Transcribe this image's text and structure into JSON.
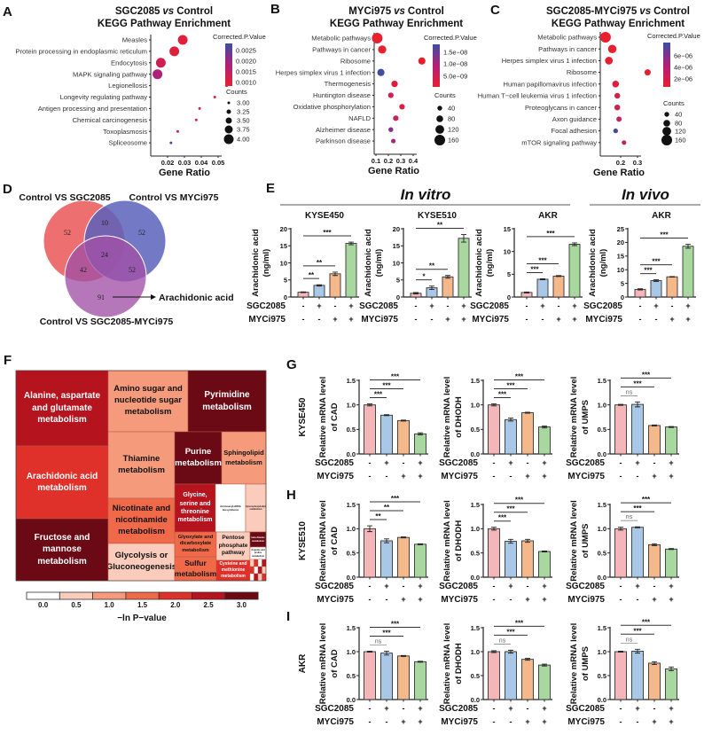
{
  "panel_letters": {
    "A": "A",
    "B": "B",
    "C": "C",
    "D": "D",
    "E": "E",
    "F": "F",
    "G": "G",
    "H": "H",
    "I": "I"
  },
  "colors": {
    "p_low": "#e8202e",
    "p_mid": "#b0207a",
    "p_high": "#3b4ea0",
    "ctrl": "#f4b6b8",
    "sgc": "#a9c8e8",
    "myc": "#f5b88a",
    "combo": "#a8d8a0"
  },
  "chart_data": [
    {
      "id": "A",
      "type": "scatter",
      "title_a": "SGC2085",
      "title_vs": "vs",
      "title_b": "Control",
      "title2": "KEGG Pathway Enrichment",
      "xlabel": "Gene Ratio",
      "xticks": [
        "0.02",
        "0.03",
        "0.04",
        "0.05"
      ],
      "categories": [
        "Measles",
        "Protein processing in endoplasmic reticulum",
        "Endocytosis",
        "MAPK signaling pathway",
        "Legionellosis",
        "Longevity regulating pathway",
        "Antigen processing and presentation",
        "Chemical carcinogenesis",
        "Toxoplasmosis",
        "Spliceosome"
      ],
      "gene_ratio": [
        0.029,
        0.024,
        0.016,
        0.014,
        0.055,
        0.048,
        0.039,
        0.037,
        0.026,
        0.022
      ],
      "counts": [
        4,
        4,
        4,
        4,
        3,
        3,
        3,
        3,
        3,
        3
      ],
      "p_value": [
        0.00095,
        0.001,
        0.0013,
        0.0018,
        0.001,
        0.001,
        0.0011,
        0.0011,
        0.0015,
        0.0027
      ],
      "color_range": [
        0.0008,
        0.0028
      ],
      "color_legend": {
        "title": "Corrected.P.Value",
        "ticks": [
          "0.0025",
          "0.0020",
          "0.0015",
          "0.0010"
        ]
      },
      "size_legend": {
        "title": "Counts",
        "ticks": [
          "3.00",
          "3.25",
          "3.50",
          "3.75",
          "4.00"
        ],
        "values": [
          3,
          3.25,
          3.5,
          3.75,
          4
        ]
      }
    },
    {
      "id": "B",
      "type": "scatter",
      "title_a": "MYCi975",
      "title_vs": "vs",
      "title_b": "Control",
      "title2": "KEGG Pathway Enrichment",
      "xlabel": "Gene Ratio",
      "xticks": [
        "0.1",
        "0.2",
        "0.3",
        "0.4"
      ],
      "categories": [
        "Metabolic pathways",
        "Pathways in cancer",
        "Ribosome",
        "Herpes simplex virus 1 infection",
        "Thermogenesis",
        "Huntington disease",
        "Oxidative phosphorylation",
        "NAFLD",
        "Alzheimer disease",
        "Parkinson disease"
      ],
      "gene_ratio": [
        0.11,
        0.15,
        0.47,
        0.14,
        0.25,
        0.22,
        0.31,
        0.26,
        0.22,
        0.24
      ],
      "counts": [
        160,
        110,
        90,
        90,
        75,
        55,
        55,
        55,
        40,
        35
      ],
      "p_value": [
        1e-10,
        1e-10,
        1e-10,
        1.7e-08,
        2e-09,
        4e-09,
        3e-09,
        5e-09,
        1.2e-08,
        9e-09
      ],
      "color_range": [
        0,
        1.76e-08
      ],
      "color_legend": {
        "title": "Corrected.P.Value",
        "ticks": [
          "1.5e−08",
          "1.0e−08",
          "5.0e−09"
        ]
      },
      "size_legend": {
        "title": "Counts",
        "ticks": [
          "40",
          "80",
          "120",
          "160"
        ],
        "values": [
          40,
          80,
          120,
          160
        ]
      }
    },
    {
      "id": "C",
      "type": "scatter",
      "title_a": "SGC2085-MYCi975",
      "title_vs": "vs",
      "title_b": "Control",
      "title2": "KEGG Pathway Enrichment",
      "xlabel": "Gene Ratio",
      "xticks": [
        "0.2",
        "0.3"
      ],
      "categories": [
        "Metabolic pathways",
        "Pathways in cancer",
        "Herpes simplex virus 1 infection",
        "Ribosome",
        "Human papillomavirus infection",
        "Human T−cell leukemia virus 1 infection",
        "Proteoglycans in cancer",
        "Axon guidance",
        "Focal adhesion",
        "mTOR signaling pathway"
      ],
      "gene_ratio": [
        0.11,
        0.15,
        0.13,
        0.36,
        0.17,
        0.18,
        0.18,
        0.19,
        0.17,
        0.22
      ],
      "counts": [
        160,
        115,
        100,
        70,
        80,
        60,
        60,
        50,
        40,
        35
      ],
      "p_value": [
        1e-07,
        4e-07,
        5e-07,
        5e-07,
        1e-06,
        1.5e-06,
        2e-06,
        2.5e-06,
        7.5e-06,
        3e-06
      ],
      "color_range": [
        3e-07,
        8e-06
      ],
      "color_legend": {
        "title": "Corrected.P.Value",
        "ticks": [
          "6e−06",
          "4e−06",
          "2e−06"
        ]
      },
      "size_legend": {
        "title": "Counts",
        "ticks": [
          "40",
          "80",
          "120",
          "160"
        ],
        "values": [
          40,
          80,
          120,
          160
        ]
      }
    },
    {
      "id": "D",
      "type": "venn",
      "sets": [
        "Control VS SGC2085",
        "Control VS MYCi975",
        "Control VS SGC2085-MYCi975"
      ],
      "regions": {
        "only_1": "52",
        "only_2": "52",
        "only_3": "91",
        "1_2": "10",
        "1_3": "42",
        "2_3": "52",
        "1_2_3": "24"
      },
      "annotation": "Arachidonic acid"
    },
    {
      "id": "E",
      "type": "bar",
      "group_headers": {
        "in_vitro": "In vitro",
        "in_vivo": "In vivo"
      },
      "ylabel": [
        "Arachidonic acid",
        "(ng/ml)"
      ],
      "row_labels": [
        "SGC2085",
        "MYCi975"
      ],
      "conditions": {
        "SGC2085": [
          "-",
          "+",
          "-",
          "+"
        ],
        "MYCi975": [
          "-",
          "-",
          "+",
          "+"
        ]
      },
      "panels": [
        {
          "title": "KYSE450",
          "ymax": 20,
          "yticks": [
            "0",
            "5",
            "10",
            "15",
            "20"
          ],
          "values": [
            1.4,
            3.4,
            6.8,
            15.7
          ],
          "errors": [
            0.1,
            0.2,
            0.5,
            0.4
          ],
          "significance": [
            "**",
            "**",
            "***"
          ]
        },
        {
          "title": "KYSE510",
          "ymax": 20,
          "yticks": [
            "0",
            "5",
            "10",
            "15",
            "20"
          ],
          "values": [
            1.1,
            2.7,
            5.9,
            17.2
          ],
          "errors": [
            0.2,
            0.5,
            0.4,
            1.1
          ],
          "significance": [
            "*",
            "**",
            "**"
          ]
        },
        {
          "title": "AKR",
          "ymax": 15,
          "yticks": [
            "0",
            "5",
            "10",
            "15"
          ],
          "values": [
            1.0,
            3.9,
            4.6,
            11.6
          ],
          "errors": [
            0.1,
            0.1,
            0.1,
            0.3
          ],
          "significance": [
            "***",
            "***",
            "***"
          ]
        },
        {
          "title": "AKR",
          "ymax": 25,
          "yticks": [
            "0",
            "5",
            "10",
            "15",
            "20",
            "25"
          ],
          "values": [
            2.8,
            6.0,
            7.4,
            18.6
          ],
          "errors": [
            0.2,
            0.3,
            0.1,
            0.7
          ],
          "significance": [
            "***",
            "***",
            "***"
          ]
        }
      ]
    },
    {
      "id": "F",
      "type": "treemap",
      "legend_title": "−ln P−value",
      "legend_ticks": [
        "0.0",
        "0.5",
        "1.0",
        "1.5",
        "2.0",
        "2.5",
        "3.0"
      ],
      "legend_colors": [
        "#ffffff",
        "#fbcbbb",
        "#f59a7a",
        "#f06a4a",
        "#e0302a",
        "#b5141e",
        "#6b0a14"
      ],
      "items": [
        {
          "name": "Alanine, aspartate and glutamate metabolism",
          "value": 2.6
        },
        {
          "name": "Arachidonic acid metabolism",
          "value": 2.1
        },
        {
          "name": "Fructose and mannose metabolism",
          "value": 3.1
        },
        {
          "name": "Amino sugar and nucleotide sugar metabolism",
          "value": 1.2
        },
        {
          "name": "Pyrimidine metabolism",
          "value": 3.1
        },
        {
          "name": "Thiamine metabolism",
          "value": 0.8
        },
        {
          "name": "Nicotinate and nicotinamide metabolism",
          "value": 1.3
        },
        {
          "name": "Glycolysis or Gluconeogenesis",
          "value": 0.6
        },
        {
          "name": "Purine metabolism",
          "value": 3.1
        },
        {
          "name": "Sphingolipid metabolism",
          "value": 0.8
        },
        {
          "name": "Glycine, serine and threonine metabolism",
          "value": 2.6
        },
        {
          "name": "Aminoacyl-tRNA biosynthesis",
          "value": 0.1
        },
        {
          "name": "Glycerophospholipid metabolism",
          "value": 0.3
        },
        {
          "name": "Glyoxylate and dicarboxylate metabolism",
          "value": 1.3
        },
        {
          "name": "Sulfur metabolism",
          "value": 1.4
        },
        {
          "name": "Pentose phosphate pathway",
          "value": 0.4
        },
        {
          "name": "Cysteine and methionine metabolism",
          "value": 2.2
        },
        {
          "name": "beta-Alanine metabolism",
          "value": 3.0
        },
        {
          "name": "Arginine and proline metabolism",
          "value": 0.2
        }
      ]
    },
    {
      "id": "GHI",
      "type": "bar",
      "row_labels": [
        "SGC2085",
        "MYCi975"
      ],
      "conditions": {
        "SGC2085": [
          "-",
          "+",
          "-",
          "+"
        ],
        "MYCi975": [
          "-",
          "-",
          "+",
          "+"
        ]
      },
      "yticks": [
        "0.0",
        "0.5",
        "1.0",
        "1.5"
      ],
      "ymax": 1.5,
      "rows": [
        {
          "cell_line": "KYSE450",
          "letter": "G",
          "panels": [
            {
              "ylabel": [
                "Relative mRNA level",
                "of CAD"
              ],
              "values": [
                1.0,
                0.79,
                0.68,
                0.41
              ],
              "errors": [
                0.02,
                0.01,
                0.01,
                0.02
              ],
              "significance": [
                "***",
                "***",
                "***"
              ]
            },
            {
              "ylabel": [
                "Relative mRNA level",
                "of DHODH"
              ],
              "values": [
                1.0,
                0.7,
                0.84,
                0.55
              ],
              "errors": [
                0.02,
                0.03,
                0.01,
                0.02
              ],
              "significance": [
                "***",
                "***",
                "***"
              ]
            },
            {
              "ylabel": [
                "Relative mRNA level",
                "of UMPS"
              ],
              "values": [
                1.0,
                1.01,
                0.58,
                0.55
              ],
              "errors": [
                0.01,
                0.05,
                0.01,
                0.01
              ],
              "significance": [
                "ns",
                "***",
                "***"
              ]
            }
          ]
        },
        {
          "cell_line": "KYSE510",
          "letter": "H",
          "panels": [
            {
              "ylabel": [
                "Relative mRNA level",
                "of CAD"
              ],
              "values": [
                1.0,
                0.75,
                0.82,
                0.68
              ],
              "errors": [
                0.06,
                0.04,
                0.01,
                0.01
              ],
              "significance": [
                "**",
                "**",
                "***"
              ]
            },
            {
              "ylabel": [
                "Relative mRNA level",
                "of DHODH"
              ],
              "values": [
                1.0,
                0.74,
                0.75,
                0.53
              ],
              "errors": [
                0.03,
                0.04,
                0.03,
                0.01
              ],
              "significance": [
                "***",
                "***",
                "***"
              ]
            },
            {
              "ylabel": [
                "Relative mRNA level",
                "of UMPS"
              ],
              "values": [
                1.0,
                1.03,
                0.67,
                0.58
              ],
              "errors": [
                0.03,
                0.01,
                0.02,
                0.01
              ],
              "significance": [
                "ns",
                "***",
                "***"
              ]
            }
          ]
        },
        {
          "cell_line": "AKR",
          "letter": "I",
          "panels": [
            {
              "ylabel": [
                "Relative mRNA level",
                "of CAD"
              ],
              "values": [
                1.0,
                0.97,
                0.91,
                0.79
              ],
              "errors": [
                0.01,
                0.04,
                0.01,
                0.01
              ],
              "significance": [
                "ns",
                "***",
                "***"
              ]
            },
            {
              "ylabel": [
                "Relative mRNA level",
                "of DHODH"
              ],
              "values": [
                1.0,
                1.0,
                0.84,
                0.72
              ],
              "errors": [
                0.02,
                0.03,
                0.02,
                0.02
              ],
              "significance": [
                "ns",
                "***",
                "***"
              ]
            },
            {
              "ylabel": [
                "Relative mRNA level",
                "of UMPS"
              ],
              "values": [
                1.0,
                1.01,
                0.76,
                0.64
              ],
              "errors": [
                0.01,
                0.04,
                0.03,
                0.04
              ],
              "significance": [
                "ns",
                "***",
                "***"
              ]
            }
          ]
        }
      ]
    }
  ]
}
